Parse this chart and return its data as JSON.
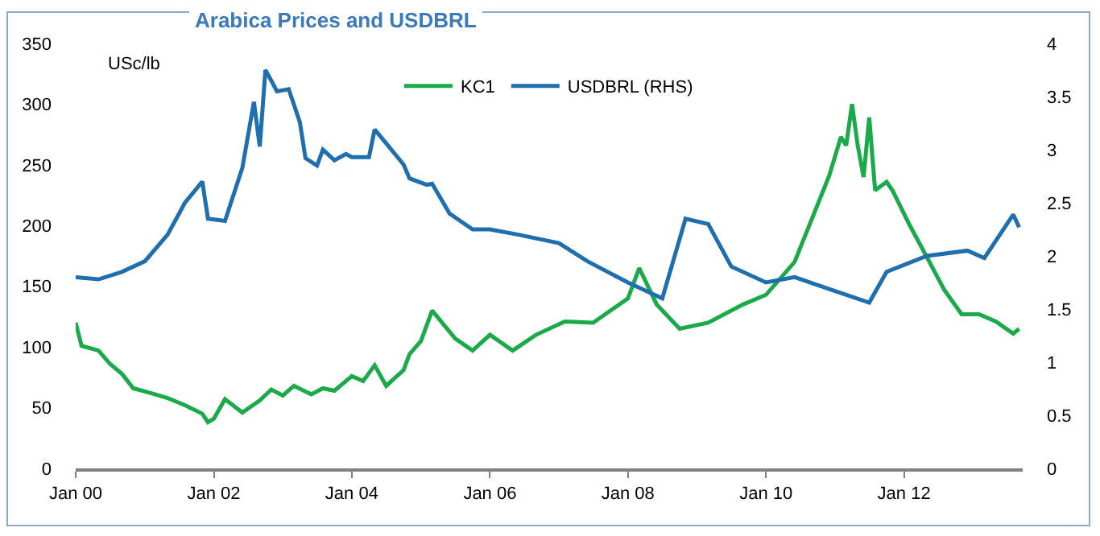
{
  "chart_data": {
    "type": "line",
    "title": "Arabica Prices and USDBRL",
    "ylabel": "USc/lb",
    "legend": "top",
    "grid": false,
    "marker": "none",
    "line_style": "solid",
    "xlim": [
      "2000-01-01",
      "2013-09-20"
    ],
    "xticks": [
      {
        "value": "2000-01",
        "label": "Jan 00"
      },
      {
        "value": "2002-01",
        "label": "Jan 02"
      },
      {
        "value": "2004-01",
        "label": "Jan 04"
      },
      {
        "value": "2006-01",
        "label": "Jan 06"
      },
      {
        "value": "2008-01",
        "label": "Jan 08"
      },
      {
        "value": "2010-01",
        "label": "Jan 10"
      },
      {
        "value": "2012-01",
        "label": "Jan 12"
      }
    ],
    "ylim": [
      0,
      350
    ],
    "yticks": [
      0,
      50,
      100,
      150,
      200,
      250,
      300,
      350
    ],
    "y2lim": [
      0,
      4
    ],
    "y2ticks": [
      0,
      0.5,
      1,
      1.5,
      2,
      2.5,
      3,
      3.5,
      4
    ],
    "series": [
      {
        "name": "KC1",
        "color": "#1aaa4a",
        "x": [
          "2000-01",
          "2000-02",
          "2000-05",
          "2000-07",
          "2000-09",
          "2000-11",
          "2001-02",
          "2001-05",
          "2001-08",
          "2001-11",
          "2001-12",
          "2002-01",
          "2002-03",
          "2002-06",
          "2002-09",
          "2002-11",
          "2003-01",
          "2003-03",
          "2003-06",
          "2003-08",
          "2003-10",
          "2004-01",
          "2004-03",
          "2004-05",
          "2004-07",
          "2004-10",
          "2004-11",
          "2005-01",
          "2005-03",
          "2005-07",
          "2005-10",
          "2006-01",
          "2006-05",
          "2006-09",
          "2007-02",
          "2007-07",
          "2008-01",
          "2008-03",
          "2008-06",
          "2008-10",
          "2009-03",
          "2009-09",
          "2010-01",
          "2010-06",
          "2010-12",
          "2011-02",
          "2011-03",
          "2011-04",
          "2011-05",
          "2011-06",
          "2011-07",
          "2011-08",
          "2011-10",
          "2011-11",
          "2012-02",
          "2012-05",
          "2012-08",
          "2012-11",
          "2013-02",
          "2013-05",
          "2013-08",
          "2013-09"
        ],
        "values": [
          120,
          101,
          97,
          86,
          78,
          66,
          62,
          58,
          52,
          45,
          38,
          41,
          57,
          46,
          56,
          65,
          60,
          68,
          61,
          66,
          64,
          76,
          72,
          85,
          68,
          81,
          94,
          105,
          130,
          107,
          97,
          110,
          97,
          110,
          121,
          120,
          140,
          165,
          135,
          115,
          120,
          135,
          143,
          170,
          241,
          273,
          266,
          300,
          266,
          240,
          289,
          229,
          236,
          229,
          200,
          174,
          147,
          127,
          127,
          121,
          111,
          115
        ]
      },
      {
        "name": "USDBRL (RHS)",
        "color": "#1f6fae",
        "axis": "y2",
        "x": [
          "2000-01",
          "2000-05",
          "2000-09",
          "2001-01",
          "2001-05",
          "2001-08",
          "2001-11",
          "2001-12",
          "2002-03",
          "2002-06",
          "2002-08",
          "2002-09",
          "2002-10",
          "2002-11",
          "2002-12",
          "2003-02",
          "2003-04",
          "2003-05",
          "2003-07",
          "2003-08",
          "2003-10",
          "2003-12",
          "2004-01",
          "2004-04",
          "2004-05",
          "2004-07",
          "2004-10",
          "2004-11",
          "2005-02",
          "2005-03",
          "2005-06",
          "2005-10",
          "2006-01",
          "2006-06",
          "2007-01",
          "2007-06",
          "2008-01",
          "2008-07",
          "2008-11",
          "2009-03",
          "2009-07",
          "2010-01",
          "2010-06",
          "2011-01",
          "2011-07",
          "2011-10",
          "2012-05",
          "2012-12",
          "2013-03",
          "2013-08",
          "2013-09"
        ],
        "values": [
          1.8,
          1.78,
          1.85,
          1.95,
          2.2,
          2.5,
          2.7,
          2.35,
          2.33,
          2.83,
          3.45,
          3.03,
          3.75,
          3.65,
          3.55,
          3.57,
          3.26,
          2.92,
          2.85,
          3.0,
          2.9,
          2.96,
          2.93,
          2.93,
          3.19,
          3.06,
          2.86,
          2.73,
          2.67,
          2.68,
          2.4,
          2.25,
          2.25,
          2.2,
          2.12,
          1.95,
          1.75,
          1.6,
          2.35,
          2.3,
          1.9,
          1.75,
          1.8,
          1.67,
          1.56,
          1.85,
          2.0,
          2.05,
          1.98,
          2.39,
          2.27
        ]
      }
    ]
  }
}
